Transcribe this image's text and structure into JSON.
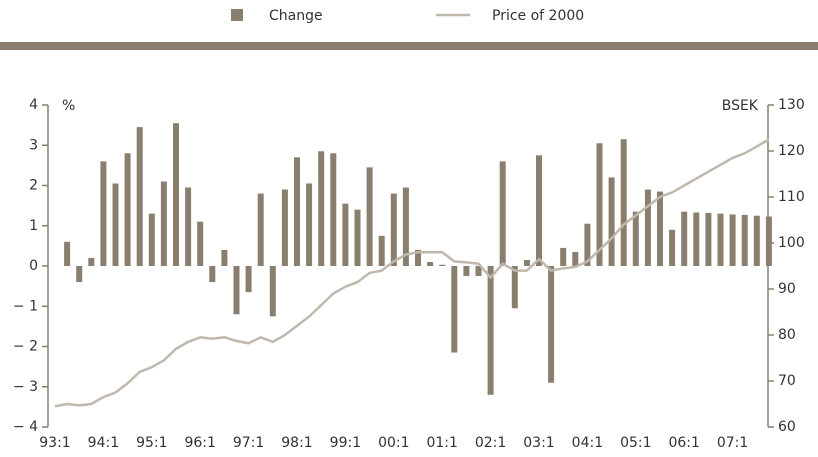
{
  "chart_data": {
    "type": "bar_line",
    "legend": [
      "Change",
      "Price of 2000"
    ],
    "y_unit": "%",
    "y2_unit": "BSEK",
    "categories": [
      "93:1",
      null,
      null,
      null,
      "94:1",
      null,
      null,
      null,
      "95:1",
      null,
      null,
      null,
      "96:1",
      null,
      null,
      null,
      "97:1",
      null,
      null,
      null,
      "98:1",
      null,
      null,
      null,
      "99:1",
      null,
      null,
      null,
      "00:1",
      null,
      null,
      null,
      "01:1",
      null,
      null,
      null,
      "02:1",
      null,
      null,
      null,
      "03:1",
      null,
      null,
      null,
      "04:1",
      null,
      null,
      null,
      "05:1",
      null,
      null,
      null,
      "06:1",
      null,
      null,
      null,
      "07:1",
      null,
      null,
      null
    ],
    "series": [
      {
        "name": "Change",
        "color": "#8a7e6e",
        "kind": "bar",
        "axis": "y",
        "values": [
          null,
          0.6,
          -0.4,
          0.2,
          2.6,
          2.05,
          2.8,
          3.45,
          1.3,
          2.1,
          3.55,
          1.95,
          1.1,
          -0.4,
          0.4,
          -1.2,
          -0.65,
          1.8,
          -1.25,
          1.9,
          2.7,
          2.05,
          2.85,
          2.8,
          1.55,
          1.4,
          2.45,
          0.75,
          1.8,
          1.95,
          0.4,
          0.1,
          0.03,
          -2.15,
          -0.25,
          -0.25,
          -3.2,
          2.6,
          -1.05,
          0.15,
          2.75,
          -2.9,
          0.45,
          0.35,
          1.05,
          3.05,
          2.2,
          3.15,
          1.35,
          1.9,
          1.85,
          0.9,
          1.35,
          1.33,
          1.32,
          1.3,
          1.28,
          1.27,
          1.25,
          1.23
        ]
      },
      {
        "name": "Price of 2000",
        "color": "#c0b8ac",
        "kind": "line",
        "axis": "y2",
        "values": [
          64.5,
          65,
          64.7,
          65,
          66.5,
          67.5,
          69.5,
          72,
          73,
          74.5,
          77,
          78.5,
          79.5,
          79.2,
          79.5,
          78.7,
          78.2,
          79.5,
          78.5,
          80,
          82,
          84,
          86.5,
          89,
          90.5,
          91.5,
          93.5,
          94,
          96,
          97.5,
          98,
          98,
          98,
          96,
          95.8,
          95.5,
          92.5,
          95.5,
          94,
          94,
          96.5,
          94,
          94.5,
          94.8,
          96,
          98.5,
          101,
          104,
          106,
          108,
          110,
          111,
          112.5,
          114,
          115.5,
          117,
          118.5,
          119.5,
          121,
          122.5
        ]
      }
    ],
    "ylim": [
      -4,
      4
    ],
    "yticks": [
      {
        "value": -4,
        "label": "− 4"
      },
      {
        "value": -3,
        "label": "− 3"
      },
      {
        "value": -2,
        "label": "− 2"
      },
      {
        "value": -1,
        "label": "− 1"
      },
      0,
      1,
      2,
      3,
      4
    ],
    "y2lim": [
      60,
      130
    ],
    "y2ticks": [
      60,
      70,
      80,
      90,
      100,
      110,
      120,
      130
    ]
  }
}
